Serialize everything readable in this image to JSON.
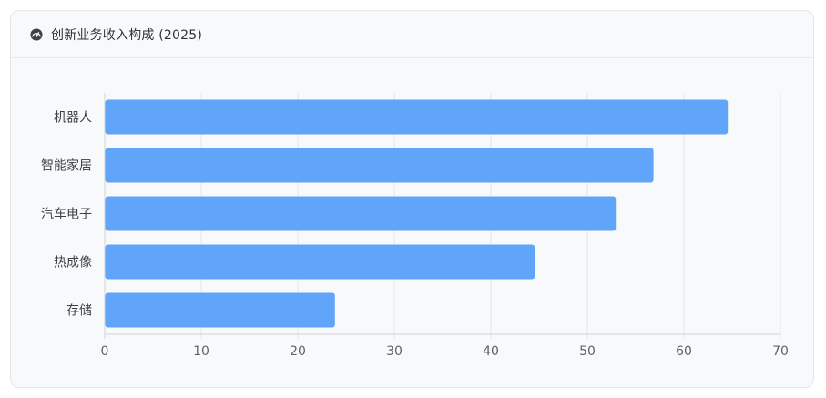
{
  "header": {
    "title": "创新业务收入构成 (2025)",
    "icon": "gauge-icon"
  },
  "chart_data": {
    "type": "bar",
    "orientation": "horizontal",
    "title": "创新业务收入构成 (2025)",
    "categories": [
      "机器人",
      "智能家居",
      "汽车电子",
      "热成像",
      "存储"
    ],
    "values": [
      64.5,
      56.8,
      52.9,
      44.5,
      23.8
    ],
    "xlim": [
      0,
      70
    ],
    "xticks": [
      "0",
      "10",
      "20",
      "30",
      "40",
      "50",
      "60",
      "70"
    ],
    "xlabel": "",
    "ylabel": "",
    "grid": "vertical",
    "legend": "none",
    "bar_color": "#60a5fa"
  }
}
